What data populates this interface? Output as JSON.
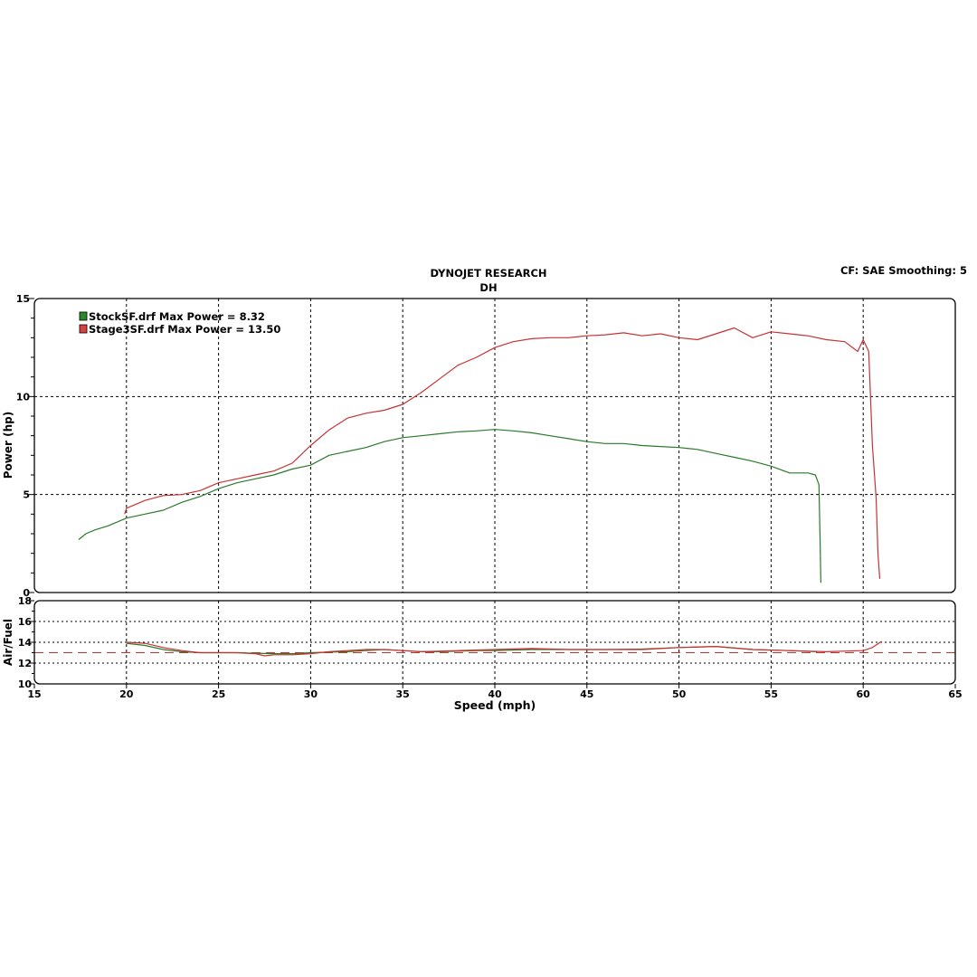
{
  "header": {
    "title": "DYNOJET RESEARCH",
    "subtitle": "DH",
    "info": "CF: SAE  Smoothing: 5"
  },
  "chart_data": {
    "type": "line",
    "x_axis": {
      "label": "Speed (mph)",
      "range": [
        15,
        65
      ],
      "ticks": [
        15,
        20,
        25,
        30,
        35,
        40,
        45,
        50,
        55,
        60,
        65
      ]
    },
    "power_panel": {
      "ylabel": "Power (hp)",
      "ylim": [
        0,
        15
      ],
      "major_ticks": [
        0,
        5,
        10,
        15
      ],
      "minor_step": 1,
      "grid": true,
      "legend": [
        {
          "label": "StockSF.drf Max Power = 8.32",
          "color": "#2a8a2a"
        },
        {
          "label": "Stage3SF.drf Max Power = 13.50",
          "color": "#d94040"
        }
      ],
      "series": [
        {
          "name": "StockSF.drf",
          "color": "#2a7a2a",
          "x": [
            17.4,
            17.8,
            18.3,
            19.0,
            20.0,
            21.0,
            22.0,
            23.0,
            24.0,
            25.0,
            26.0,
            27.0,
            28.0,
            29.0,
            30.0,
            31.0,
            32.0,
            33.0,
            34.0,
            35.0,
            36.0,
            37.0,
            38.0,
            39.0,
            40.0,
            41.0,
            42.0,
            43.0,
            44.0,
            45.0,
            46.0,
            47.0,
            48.0,
            49.0,
            50.0,
            51.0,
            52.0,
            53.0,
            54.0,
            55.0,
            56.0,
            57.0,
            57.4,
            57.6,
            57.65,
            57.7
          ],
          "y": [
            2.7,
            3.0,
            3.2,
            3.4,
            3.8,
            4.0,
            4.2,
            4.6,
            4.9,
            5.3,
            5.6,
            5.8,
            6.0,
            6.3,
            6.5,
            7.0,
            7.2,
            7.4,
            7.7,
            7.9,
            8.0,
            8.1,
            8.2,
            8.25,
            8.32,
            8.25,
            8.15,
            8.0,
            7.85,
            7.7,
            7.6,
            7.6,
            7.5,
            7.45,
            7.4,
            7.3,
            7.1,
            6.9,
            6.7,
            6.45,
            6.1,
            6.1,
            6.0,
            5.5,
            3.0,
            0.5
          ]
        },
        {
          "name": "Stage3SF.drf",
          "color": "#c83232",
          "x": [
            19.9,
            20.0,
            21.0,
            22.0,
            23.0,
            24.0,
            25.0,
            26.0,
            27.0,
            28.0,
            29.0,
            30.0,
            31.0,
            32.0,
            33.0,
            34.0,
            35.0,
            36.0,
            37.0,
            38.0,
            39.0,
            40.0,
            41.0,
            42.0,
            43.0,
            44.0,
            45.0,
            46.0,
            47.0,
            48.0,
            49.0,
            50.0,
            51.0,
            52.0,
            53.0,
            54.0,
            55.0,
            56.0,
            57.0,
            58.0,
            59.0,
            59.7,
            60.0,
            60.3,
            60.5,
            60.7,
            60.8,
            60.9
          ],
          "y": [
            4.0,
            4.3,
            4.7,
            4.95,
            5.0,
            5.2,
            5.6,
            5.8,
            6.0,
            6.2,
            6.6,
            7.5,
            8.3,
            8.9,
            9.15,
            9.3,
            9.6,
            10.2,
            10.9,
            11.6,
            12.0,
            12.5,
            12.8,
            12.95,
            13.0,
            13.0,
            13.1,
            13.15,
            13.25,
            13.1,
            13.2,
            13.0,
            12.9,
            13.2,
            13.5,
            13.0,
            13.3,
            13.2,
            13.1,
            12.9,
            12.8,
            12.3,
            12.9,
            12.3,
            7.5,
            4.8,
            2.0,
            0.7
          ]
        }
      ]
    },
    "airfuel_panel": {
      "ylabel": "Air/Fuel",
      "ylim": [
        10,
        18
      ],
      "major_ticks": [
        10,
        12,
        14,
        16,
        18
      ],
      "reference_line": 13.0,
      "series": [
        {
          "name": "StockSF.drf",
          "color": "#2a7a2a",
          "x": [
            20.0,
            21.0,
            22.0,
            23.0,
            24.0,
            25.0,
            26.0,
            27.0,
            28.0,
            29.0,
            30.0,
            31.0,
            32.0,
            33.0,
            34.0,
            35.0,
            36.0,
            37.0,
            38.0,
            39.0,
            40.0,
            42.0,
            44.0,
            46.0,
            48.0,
            50.0,
            52.0,
            54.0,
            56.0,
            57.5
          ],
          "y": [
            13.9,
            13.7,
            13.3,
            13.1,
            13.0,
            13.0,
            13.0,
            12.95,
            12.9,
            12.9,
            13.0,
            13.05,
            13.1,
            13.2,
            13.3,
            13.2,
            13.1,
            13.1,
            13.15,
            13.2,
            13.2,
            13.3,
            13.3,
            13.3,
            13.35,
            13.5,
            13.6,
            13.3,
            13.2,
            13.1
          ]
        },
        {
          "name": "Stage3SF.drf",
          "color": "#c83232",
          "x": [
            20.0,
            21.0,
            22.0,
            23.0,
            24.0,
            25.0,
            26.0,
            27.0,
            27.5,
            28.0,
            29.0,
            30.0,
            31.0,
            32.0,
            33.0,
            34.0,
            35.0,
            36.0,
            38.0,
            40.0,
            42.0,
            44.0,
            46.0,
            48.0,
            50.0,
            52.0,
            54.0,
            56.0,
            58.0,
            60.0,
            60.5,
            61.0
          ],
          "y": [
            14.0,
            13.9,
            13.5,
            13.2,
            13.0,
            13.0,
            13.0,
            12.9,
            12.7,
            12.8,
            12.8,
            12.9,
            13.1,
            13.2,
            13.3,
            13.3,
            13.2,
            13.1,
            13.2,
            13.3,
            13.4,
            13.3,
            13.3,
            13.3,
            13.5,
            13.6,
            13.3,
            13.2,
            13.1,
            13.2,
            13.5,
            14.1
          ]
        }
      ]
    }
  }
}
